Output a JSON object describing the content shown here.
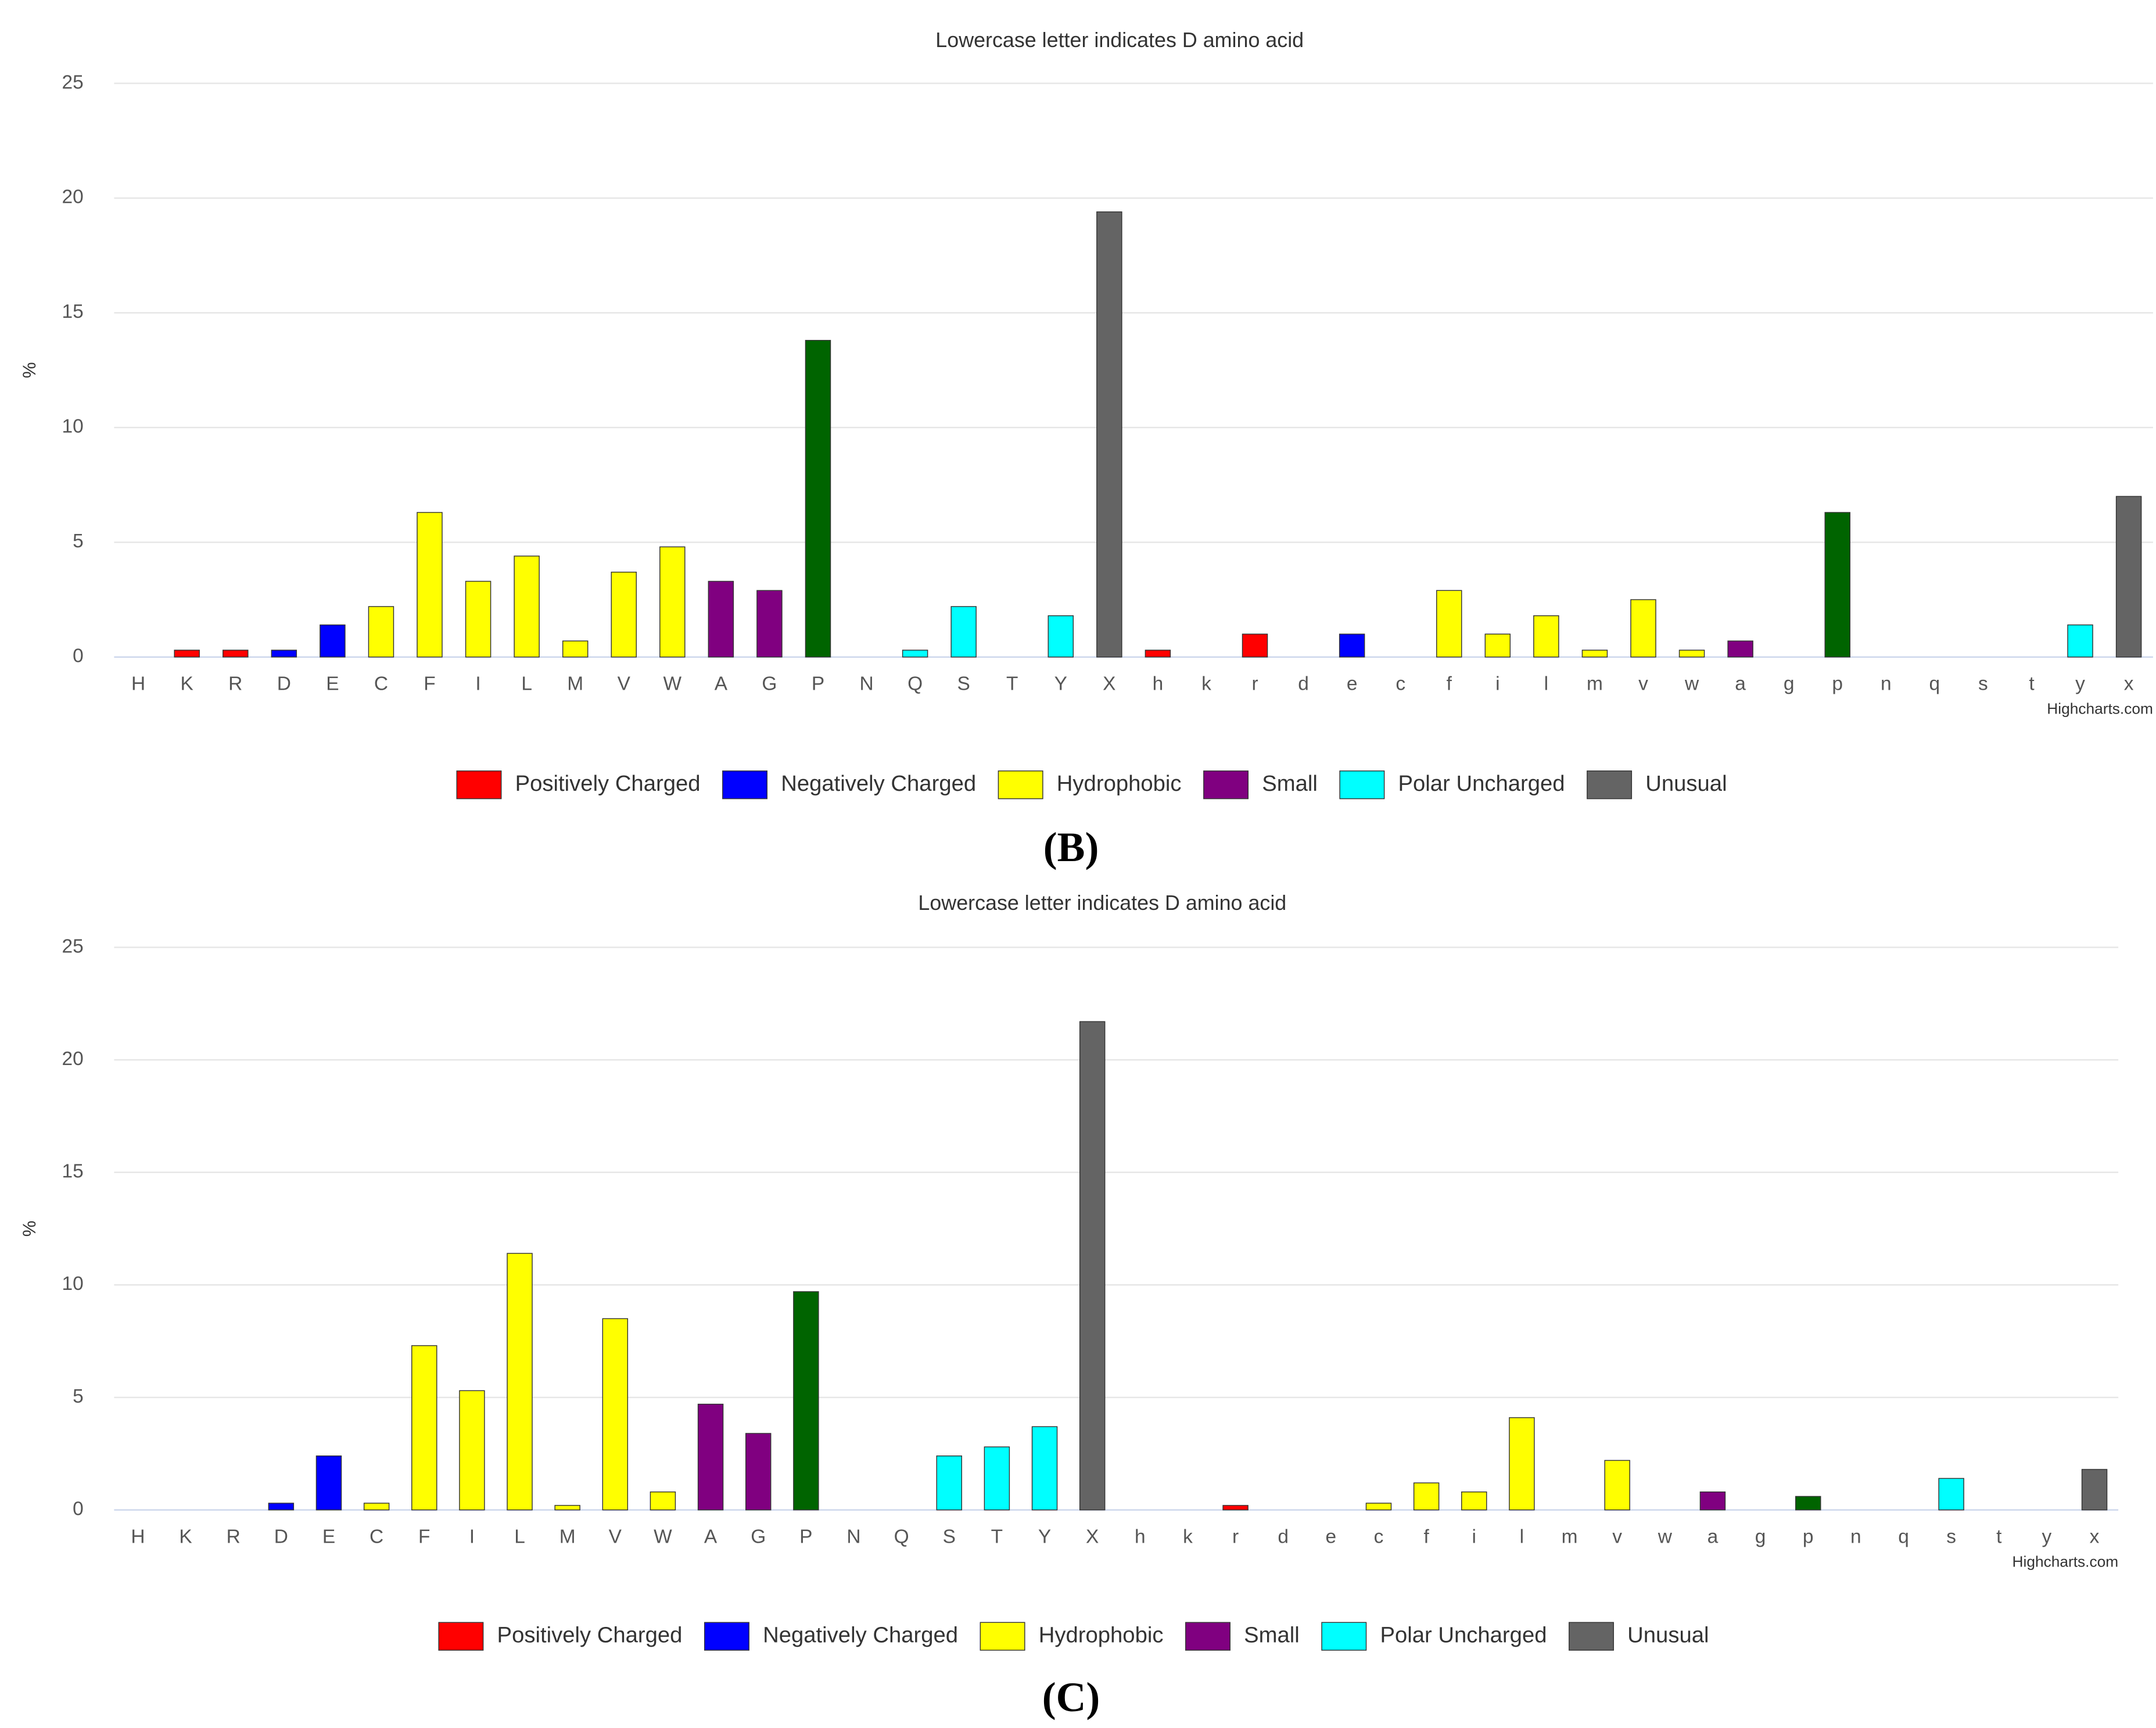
{
  "chart_data": [
    {
      "type": "bar",
      "panel_label": "(B)",
      "title": "Lowercase letter indicates D amino acid",
      "y_label": "%",
      "credits": "Highcharts.com",
      "categories": [
        "H",
        "K",
        "R",
        "D",
        "E",
        "C",
        "F",
        "I",
        "L",
        "M",
        "V",
        "W",
        "A",
        "G",
        "P",
        "N",
        "Q",
        "S",
        "T",
        "Y",
        "X",
        "h",
        "k",
        "r",
        "d",
        "e",
        "c",
        "f",
        "i",
        "l",
        "m",
        "v",
        "w",
        "a",
        "g",
        "p",
        "n",
        "q",
        "s",
        "t",
        "y",
        "x"
      ],
      "values": [
        0,
        0.3,
        0.3,
        0.3,
        1.4,
        2.2,
        6.3,
        3.3,
        4.4,
        0.7,
        3.7,
        4.8,
        3.3,
        2.9,
        13.8,
        0,
        0.3,
        2.2,
        0,
        1.8,
        19.4,
        0.3,
        0,
        1.0,
        0,
        1.0,
        0,
        2.9,
        1.0,
        1.8,
        0.3,
        2.5,
        0.3,
        0.7,
        0,
        6.3,
        0,
        0,
        0,
        0,
        1.4,
        7.0
      ],
      "colors": [
        "#ff0000",
        "#ff0000",
        "#ff0000",
        "#0000ff",
        "#0000ff",
        "#ffff00",
        "#ffff00",
        "#ffff00",
        "#ffff00",
        "#ffff00",
        "#ffff00",
        "#ffff00",
        "#800080",
        "#800080",
        "#006400",
        "#00ffff",
        "#00ffff",
        "#00ffff",
        "#00ffff",
        "#00ffff",
        "#646464",
        "#ff0000",
        "#ff0000",
        "#ff0000",
        "#0000ff",
        "#0000ff",
        "#ffff00",
        "#ffff00",
        "#ffff00",
        "#ffff00",
        "#ffff00",
        "#ffff00",
        "#ffff00",
        "#800080",
        "#800080",
        "#006400",
        "#00ffff",
        "#00ffff",
        "#00ffff",
        "#00ffff",
        "#00ffff",
        "#646464"
      ],
      "ylim": [
        0,
        25
      ],
      "yticks": [
        0,
        5,
        10,
        15,
        20,
        25
      ],
      "grid": true,
      "legend": [
        {
          "name": "Positively Charged",
          "color": "#ff0000"
        },
        {
          "name": "Negatively Charged",
          "color": "#0000ff"
        },
        {
          "name": "Hydrophobic",
          "color": "#ffff00"
        },
        {
          "name": "Small",
          "color": "#800080"
        },
        {
          "name": "Polar Uncharged",
          "color": "#00ffff"
        },
        {
          "name": "Unusual",
          "color": "#646464"
        }
      ]
    },
    {
      "type": "bar",
      "panel_label": "(C)",
      "title": "Lowercase letter indicates D amino acid",
      "y_label": "%",
      "credits": "Highcharts.com",
      "categories": [
        "H",
        "K",
        "R",
        "D",
        "E",
        "C",
        "F",
        "I",
        "L",
        "M",
        "V",
        "W",
        "A",
        "G",
        "P",
        "N",
        "Q",
        "S",
        "T",
        "Y",
        "X",
        "h",
        "k",
        "r",
        "d",
        "e",
        "c",
        "f",
        "i",
        "l",
        "m",
        "v",
        "w",
        "a",
        "g",
        "p",
        "n",
        "q",
        "s",
        "t",
        "y",
        "x"
      ],
      "values": [
        0,
        0,
        0,
        0.3,
        2.4,
        0.3,
        7.3,
        5.3,
        11.4,
        0.2,
        8.5,
        0.8,
        4.7,
        3.4,
        9.7,
        0,
        0,
        2.4,
        2.8,
        3.7,
        21.7,
        0,
        0,
        0.2,
        0,
        0,
        0.3,
        1.2,
        0.8,
        4.1,
        0,
        2.2,
        0,
        0.8,
        0,
        0.6,
        0,
        0,
        1.4,
        0,
        0,
        1.8
      ],
      "colors": [
        "#ff0000",
        "#ff0000",
        "#ff0000",
        "#0000ff",
        "#0000ff",
        "#ffff00",
        "#ffff00",
        "#ffff00",
        "#ffff00",
        "#ffff00",
        "#ffff00",
        "#ffff00",
        "#800080",
        "#800080",
        "#006400",
        "#00ffff",
        "#00ffff",
        "#00ffff",
        "#00ffff",
        "#00ffff",
        "#646464",
        "#ff0000",
        "#ff0000",
        "#ff0000",
        "#0000ff",
        "#0000ff",
        "#ffff00",
        "#ffff00",
        "#ffff00",
        "#ffff00",
        "#ffff00",
        "#ffff00",
        "#ffff00",
        "#800080",
        "#800080",
        "#006400",
        "#00ffff",
        "#00ffff",
        "#00ffff",
        "#00ffff",
        "#00ffff",
        "#646464"
      ],
      "ylim": [
        0,
        25
      ],
      "yticks": [
        0,
        5,
        10,
        15,
        20,
        25
      ],
      "grid": true,
      "legend": [
        {
          "name": "Positively Charged",
          "color": "#ff0000"
        },
        {
          "name": "Negatively Charged",
          "color": "#0000ff"
        },
        {
          "name": "Hydrophobic",
          "color": "#ffff00"
        },
        {
          "name": "Small",
          "color": "#800080"
        },
        {
          "name": "Polar Uncharged",
          "color": "#00ffff"
        },
        {
          "name": "Unusual",
          "color": "#646464"
        }
      ]
    }
  ]
}
